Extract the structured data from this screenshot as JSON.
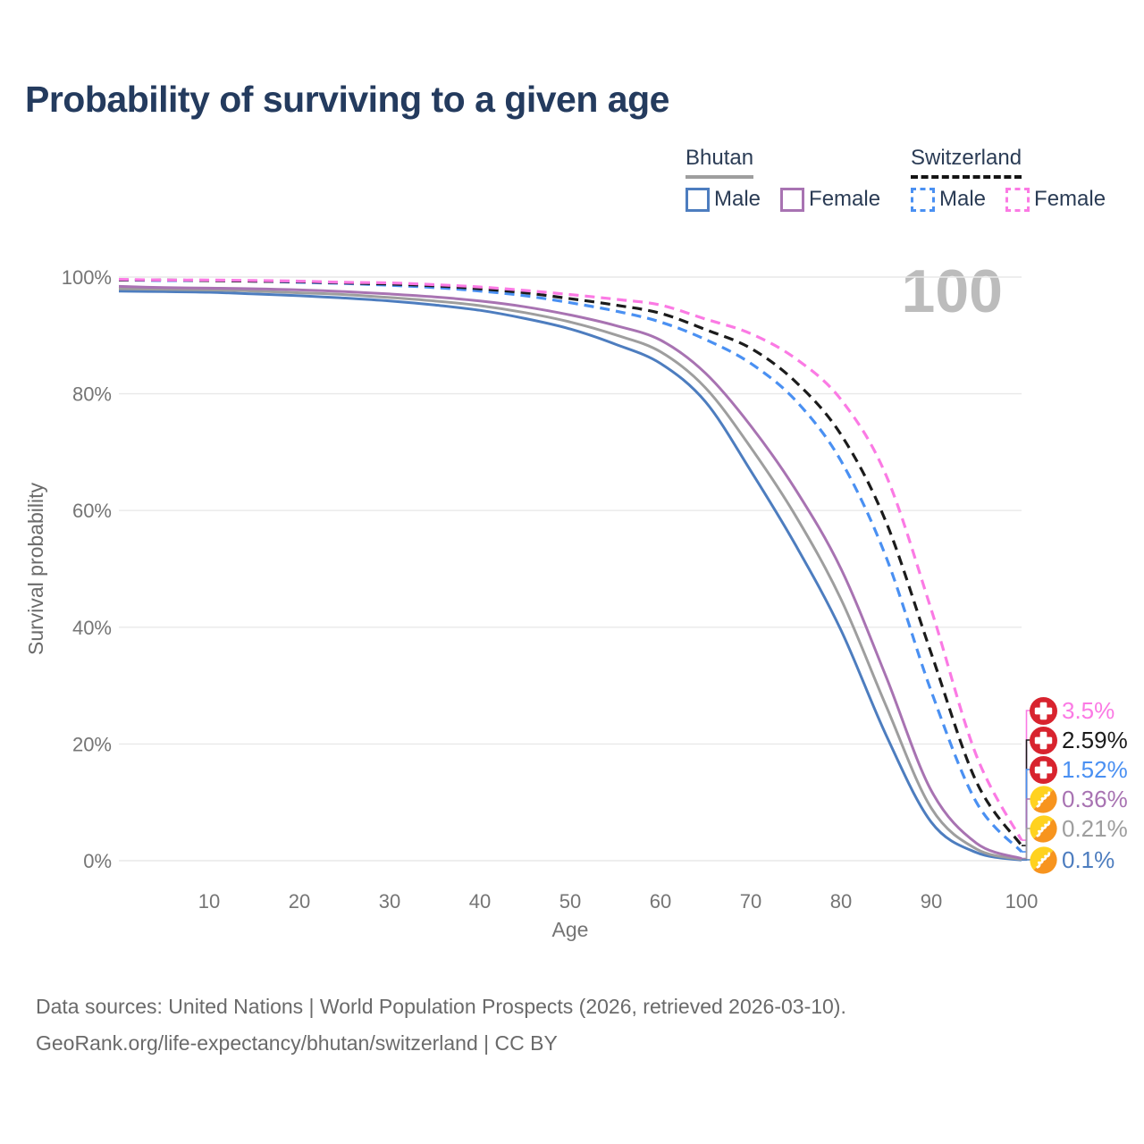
{
  "title": "Probability of surviving to a given age",
  "watermark_age": "100",
  "legend": {
    "groups": [
      {
        "label": "Bhutan",
        "line_style": "solid",
        "items": [
          {
            "label": "Male",
            "swatch": "bhutan-male"
          },
          {
            "label": "Female",
            "swatch": "bhutan-female"
          }
        ]
      },
      {
        "label": "Switzerland",
        "line_style": "dashed",
        "items": [
          {
            "label": "Male",
            "swatch": "switzerland-male"
          },
          {
            "label": "Female",
            "swatch": "switzerland-female"
          }
        ]
      }
    ]
  },
  "axes": {
    "y": {
      "title": "Survival probability",
      "ticks": [
        {
          "value": 100,
          "label": "100%"
        },
        {
          "value": 80,
          "label": "80%"
        },
        {
          "value": 60,
          "label": "60%"
        },
        {
          "value": 40,
          "label": "40%"
        },
        {
          "value": 20,
          "label": "20%"
        },
        {
          "value": 0,
          "label": "0%"
        }
      ]
    },
    "x": {
      "title": "Age",
      "ticks": [
        {
          "value": 10,
          "label": "10"
        },
        {
          "value": 20,
          "label": "20"
        },
        {
          "value": 30,
          "label": "30"
        },
        {
          "value": 40,
          "label": "40"
        },
        {
          "value": 50,
          "label": "50"
        },
        {
          "value": 60,
          "label": "60"
        },
        {
          "value": 70,
          "label": "70"
        },
        {
          "value": 80,
          "label": "80"
        },
        {
          "value": 90,
          "label": "90"
        },
        {
          "value": 100,
          "label": "100"
        }
      ]
    }
  },
  "chart_data": {
    "type": "line",
    "title": "Probability of surviving to a given age",
    "xlabel": "Age",
    "ylabel": "Survival probability",
    "xlim": [
      0,
      100
    ],
    "ylim": [
      0,
      100
    ],
    "grid": "horizontal",
    "legend_position": "top-right",
    "series": [
      {
        "id": "switzerland-female",
        "name": "Switzerland Female",
        "color": "#fb7ae4",
        "dashed": true,
        "end_label": "3.5%",
        "flag": "switzerland",
        "points": [
          [
            0,
            99.6
          ],
          [
            5,
            99.5
          ],
          [
            10,
            99.5
          ],
          [
            15,
            99.4
          ],
          [
            20,
            99.3
          ],
          [
            25,
            99.1
          ],
          [
            30,
            99.0
          ],
          [
            35,
            98.7
          ],
          [
            40,
            98.3
          ],
          [
            45,
            97.7
          ],
          [
            50,
            97.0
          ],
          [
            55,
            96.2
          ],
          [
            60,
            95.2
          ],
          [
            65,
            92.8
          ],
          [
            70,
            90.3
          ],
          [
            75,
            86.0
          ],
          [
            80,
            79.0
          ],
          [
            85,
            66.0
          ],
          [
            90,
            43.0
          ],
          [
            95,
            18.0
          ],
          [
            100,
            3.5
          ]
        ]
      },
      {
        "id": "switzerland-total",
        "name": "Switzerland Both sexes",
        "color": "#1b1b1b",
        "dashed": true,
        "end_label": "2.59%",
        "flag": "switzerland",
        "points": [
          [
            0,
            99.5
          ],
          [
            5,
            99.5
          ],
          [
            10,
            99.4
          ],
          [
            15,
            99.3
          ],
          [
            20,
            99.2
          ],
          [
            25,
            99.0
          ],
          [
            30,
            98.8
          ],
          [
            35,
            98.5
          ],
          [
            40,
            98.0
          ],
          [
            45,
            97.3
          ],
          [
            50,
            96.3
          ],
          [
            55,
            95.2
          ],
          [
            60,
            93.8
          ],
          [
            65,
            91.0
          ],
          [
            70,
            87.8
          ],
          [
            75,
            82.0
          ],
          [
            80,
            73.0
          ],
          [
            85,
            58.0
          ],
          [
            90,
            35.5
          ],
          [
            95,
            13.5
          ],
          [
            100,
            2.59
          ]
        ]
      },
      {
        "id": "switzerland-male",
        "name": "Switzerland Male",
        "color": "#4a90f2",
        "dashed": true,
        "end_label": "1.52%",
        "flag": "switzerland",
        "points": [
          [
            0,
            99.5
          ],
          [
            5,
            99.4
          ],
          [
            10,
            99.4
          ],
          [
            15,
            99.3
          ],
          [
            20,
            99.1
          ],
          [
            25,
            98.9
          ],
          [
            30,
            98.6
          ],
          [
            35,
            98.2
          ],
          [
            40,
            97.6
          ],
          [
            45,
            96.8
          ],
          [
            50,
            95.6
          ],
          [
            55,
            94.2
          ],
          [
            60,
            92.3
          ],
          [
            65,
            89.3
          ],
          [
            70,
            85.2
          ],
          [
            75,
            78.8
          ],
          [
            80,
            68.5
          ],
          [
            85,
            52.0
          ],
          [
            90,
            29.0
          ],
          [
            95,
            10.0
          ],
          [
            100,
            1.52
          ]
        ]
      },
      {
        "id": "bhutan-female",
        "name": "Bhutan Female",
        "color": "#a873b2",
        "dashed": false,
        "end_label": "0.36%",
        "flag": "bhutan",
        "points": [
          [
            0,
            98.4
          ],
          [
            5,
            98.2
          ],
          [
            10,
            98.1
          ],
          [
            15,
            98.0
          ],
          [
            20,
            97.8
          ],
          [
            25,
            97.5
          ],
          [
            30,
            97.1
          ],
          [
            35,
            96.6
          ],
          [
            40,
            95.9
          ],
          [
            45,
            94.9
          ],
          [
            50,
            93.5
          ],
          [
            55,
            91.7
          ],
          [
            60,
            89.2
          ],
          [
            65,
            83.5
          ],
          [
            70,
            74.5
          ],
          [
            75,
            63.5
          ],
          [
            80,
            50.0
          ],
          [
            85,
            31.5
          ],
          [
            90,
            12.0
          ],
          [
            95,
            3.0
          ],
          [
            100,
            0.36
          ]
        ]
      },
      {
        "id": "bhutan-total",
        "name": "Bhutan Both sexes",
        "color": "#9e9e9e",
        "dashed": false,
        "end_label": "0.21%",
        "flag": "bhutan",
        "points": [
          [
            0,
            98.0
          ],
          [
            5,
            97.9
          ],
          [
            10,
            97.8
          ],
          [
            15,
            97.6
          ],
          [
            20,
            97.3
          ],
          [
            25,
            97.0
          ],
          [
            30,
            96.5
          ],
          [
            35,
            95.9
          ],
          [
            40,
            95.1
          ],
          [
            45,
            93.9
          ],
          [
            50,
            92.3
          ],
          [
            55,
            90.1
          ],
          [
            60,
            87.2
          ],
          [
            65,
            81.0
          ],
          [
            70,
            70.8
          ],
          [
            75,
            59.0
          ],
          [
            80,
            44.8
          ],
          [
            85,
            26.5
          ],
          [
            90,
            9.0
          ],
          [
            95,
            2.0
          ],
          [
            100,
            0.21
          ]
        ]
      },
      {
        "id": "bhutan-male",
        "name": "Bhutan Male",
        "color": "#4d7dbf",
        "dashed": false,
        "end_label": "0.1%",
        "flag": "bhutan",
        "points": [
          [
            0,
            97.6
          ],
          [
            5,
            97.5
          ],
          [
            10,
            97.4
          ],
          [
            15,
            97.1
          ],
          [
            20,
            96.8
          ],
          [
            25,
            96.4
          ],
          [
            30,
            95.9
          ],
          [
            35,
            95.2
          ],
          [
            40,
            94.3
          ],
          [
            45,
            92.9
          ],
          [
            50,
            91.1
          ],
          [
            55,
            88.5
          ],
          [
            60,
            85.2
          ],
          [
            65,
            78.6
          ],
          [
            70,
            66.8
          ],
          [
            75,
            54.0
          ],
          [
            80,
            39.5
          ],
          [
            85,
            21.5
          ],
          [
            90,
            6.6
          ],
          [
            95,
            1.4
          ],
          [
            100,
            0.1
          ]
        ]
      }
    ]
  },
  "flag_colors": {
    "switzerland_red": "#d8232e",
    "bhutan_yellow": "#ffd21f",
    "bhutan_orange": "#f7941e"
  },
  "footer": {
    "line1": "Data sources: United Nations | World Population Prospects (2026, retrieved 2026-03-10).",
    "line2": "GeoRank.org/life-expectancy/bhutan/switzerland | CC BY"
  }
}
